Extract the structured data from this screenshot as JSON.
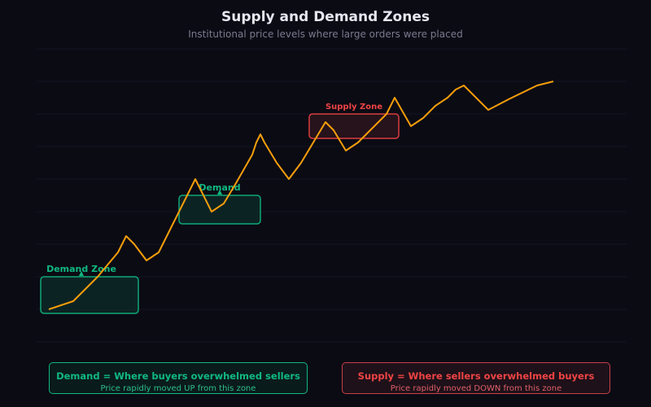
{
  "chart_data": {
    "type": "line",
    "title": "Supply and Demand Zones",
    "subtitle": "Institutional price levels where large orders were placed",
    "xlabel": "",
    "ylabel": "",
    "grid": true,
    "line_color": "#f59e0b",
    "x": [
      0,
      1,
      2,
      3,
      4,
      5,
      6,
      7,
      8,
      9,
      10,
      11,
      12,
      13,
      14,
      15,
      16,
      17,
      18,
      19,
      20,
      21,
      22,
      23,
      24,
      25,
      26,
      27,
      28,
      29,
      30,
      31,
      32,
      33,
      34,
      35,
      36,
      37,
      38
    ],
    "values": [
      40,
      50,
      80,
      110,
      130,
      120,
      100,
      110,
      140,
      170,
      200,
      160,
      170,
      195,
      230,
      245,
      255,
      245,
      220,
      200,
      220,
      245,
      270,
      260,
      235,
      245,
      265,
      280,
      300,
      265,
      275,
      290,
      300,
      310,
      315,
      285,
      298,
      315,
      320
    ],
    "zones": [
      {
        "kind": "demand",
        "label": "Demand Zone",
        "color": "#10b981",
        "x_range": [
          0,
          6
        ],
        "y_range": [
          35,
          80
        ]
      },
      {
        "kind": "demand",
        "label": "Demand",
        "color": "#10b981",
        "x_range": [
          9,
          13
        ],
        "y_range": [
          145,
          180
        ]
      },
      {
        "kind": "supply",
        "label": "Supply Zone",
        "color": "#ef4444",
        "x_range": [
          19,
          24
        ],
        "y_range": [
          250,
          280
        ]
      }
    ],
    "legend": {
      "demand_title": "Demand = Where buyers overwhelmed sellers",
      "demand_sub": "Price rapidly moved UP from this zone",
      "supply_title": "Supply = Where sellers overwhelmed buyers",
      "supply_sub": "Price rapidly moved DOWN from this zone"
    }
  }
}
